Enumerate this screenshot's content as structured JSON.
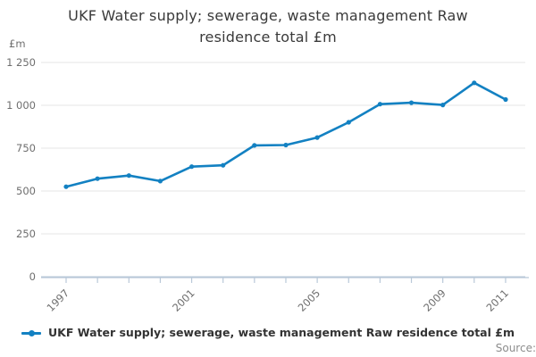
{
  "title": "UKF Water supply; sewerage, waste management Raw residence total £m",
  "y_axis": {
    "unit_label": "£m",
    "ticks": [
      0,
      250,
      500,
      750,
      1000,
      1250
    ],
    "tick_labels": [
      "0",
      "250",
      "500",
      "750",
      "1 000",
      "1 250"
    ]
  },
  "x_axis": {
    "years": [
      1997,
      1998,
      1999,
      2000,
      2001,
      2002,
      2003,
      2004,
      2005,
      2006,
      2007,
      2008,
      2009,
      2010,
      2011
    ],
    "labeled_ticks": [
      1997,
      2001,
      2005,
      2009,
      2011
    ]
  },
  "legend": {
    "label": "UKF Water supply; sewerage, waste management Raw residence total £m"
  },
  "source_label": "Source:",
  "colors": {
    "line": "#1381c2",
    "grid": "#e4e4e4",
    "axis": "#b9c8d8",
    "tick_text": "#6e6e6e",
    "title_text": "#3a3a3a",
    "legend_text": "#333333",
    "source_text": "#8c8c8c"
  },
  "chart_data": {
    "type": "line",
    "title": "UKF Water supply; sewerage, waste management Raw residence total £m",
    "x": [
      1997,
      1998,
      1999,
      2000,
      2001,
      2002,
      2003,
      2004,
      2005,
      2006,
      2007,
      2008,
      2009,
      2010,
      2011
    ],
    "series": [
      {
        "name": "UKF Water supply; sewerage, waste management Raw residence total £m",
        "values": [
          525,
          572,
          590,
          558,
          642,
          650,
          766,
          768,
          812,
          901,
          1007,
          1015,
          1002,
          1131,
          1034
        ]
      }
    ],
    "xlabel": "",
    "ylabel": "£m",
    "ylim": [
      0,
      1250
    ],
    "yticks": [
      0,
      250,
      500,
      750,
      1000,
      1250
    ],
    "xtick_labels_shown": [
      "1997",
      "2001",
      "2005",
      "2009",
      "2011"
    ],
    "grid": "horizontal",
    "legend_position": "bottom",
    "marker": "dot",
    "line_color": "#1381c2"
  }
}
